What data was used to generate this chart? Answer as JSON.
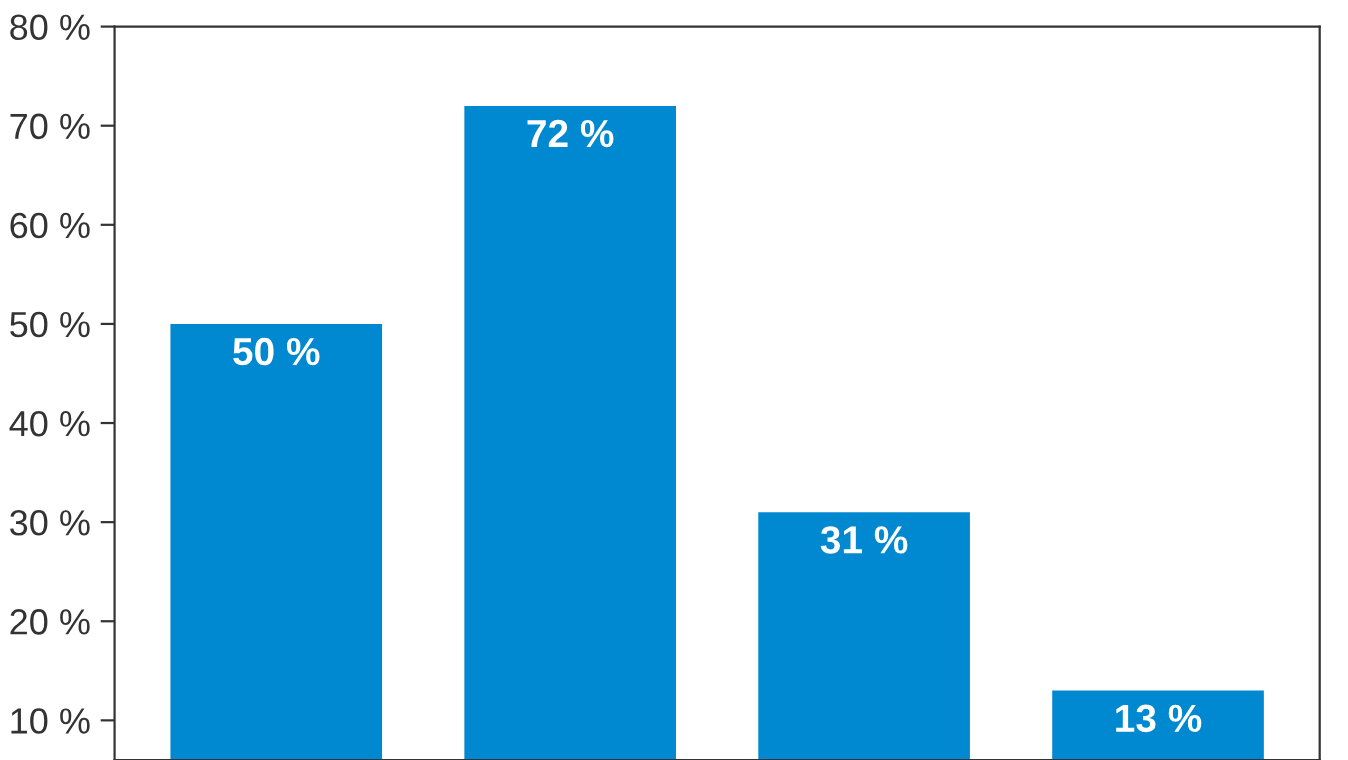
{
  "chart_data": {
    "type": "bar",
    "categories": [
      null,
      null,
      null,
      null
    ],
    "values": [
      50,
      72,
      31,
      13
    ],
    "color": "#0088d1",
    "data_labels": true,
    "value_labels": [
      "50 %",
      "72 %",
      "31 %",
      "13 %"
    ],
    "ylim": [
      6,
      80
    ],
    "yticks": [
      {
        "value": 10,
        "label": "10 %"
      },
      {
        "value": 20,
        "label": "20 %"
      },
      {
        "value": 30,
        "label": "30 %"
      },
      {
        "value": 40,
        "label": "40 %"
      },
      {
        "value": 50,
        "label": "50 %"
      },
      {
        "value": 60,
        "label": "60 %"
      },
      {
        "value": 70,
        "label": "70 %"
      },
      {
        "value": 80,
        "label": "80 %"
      }
    ],
    "grid": false,
    "legend": false
  }
}
